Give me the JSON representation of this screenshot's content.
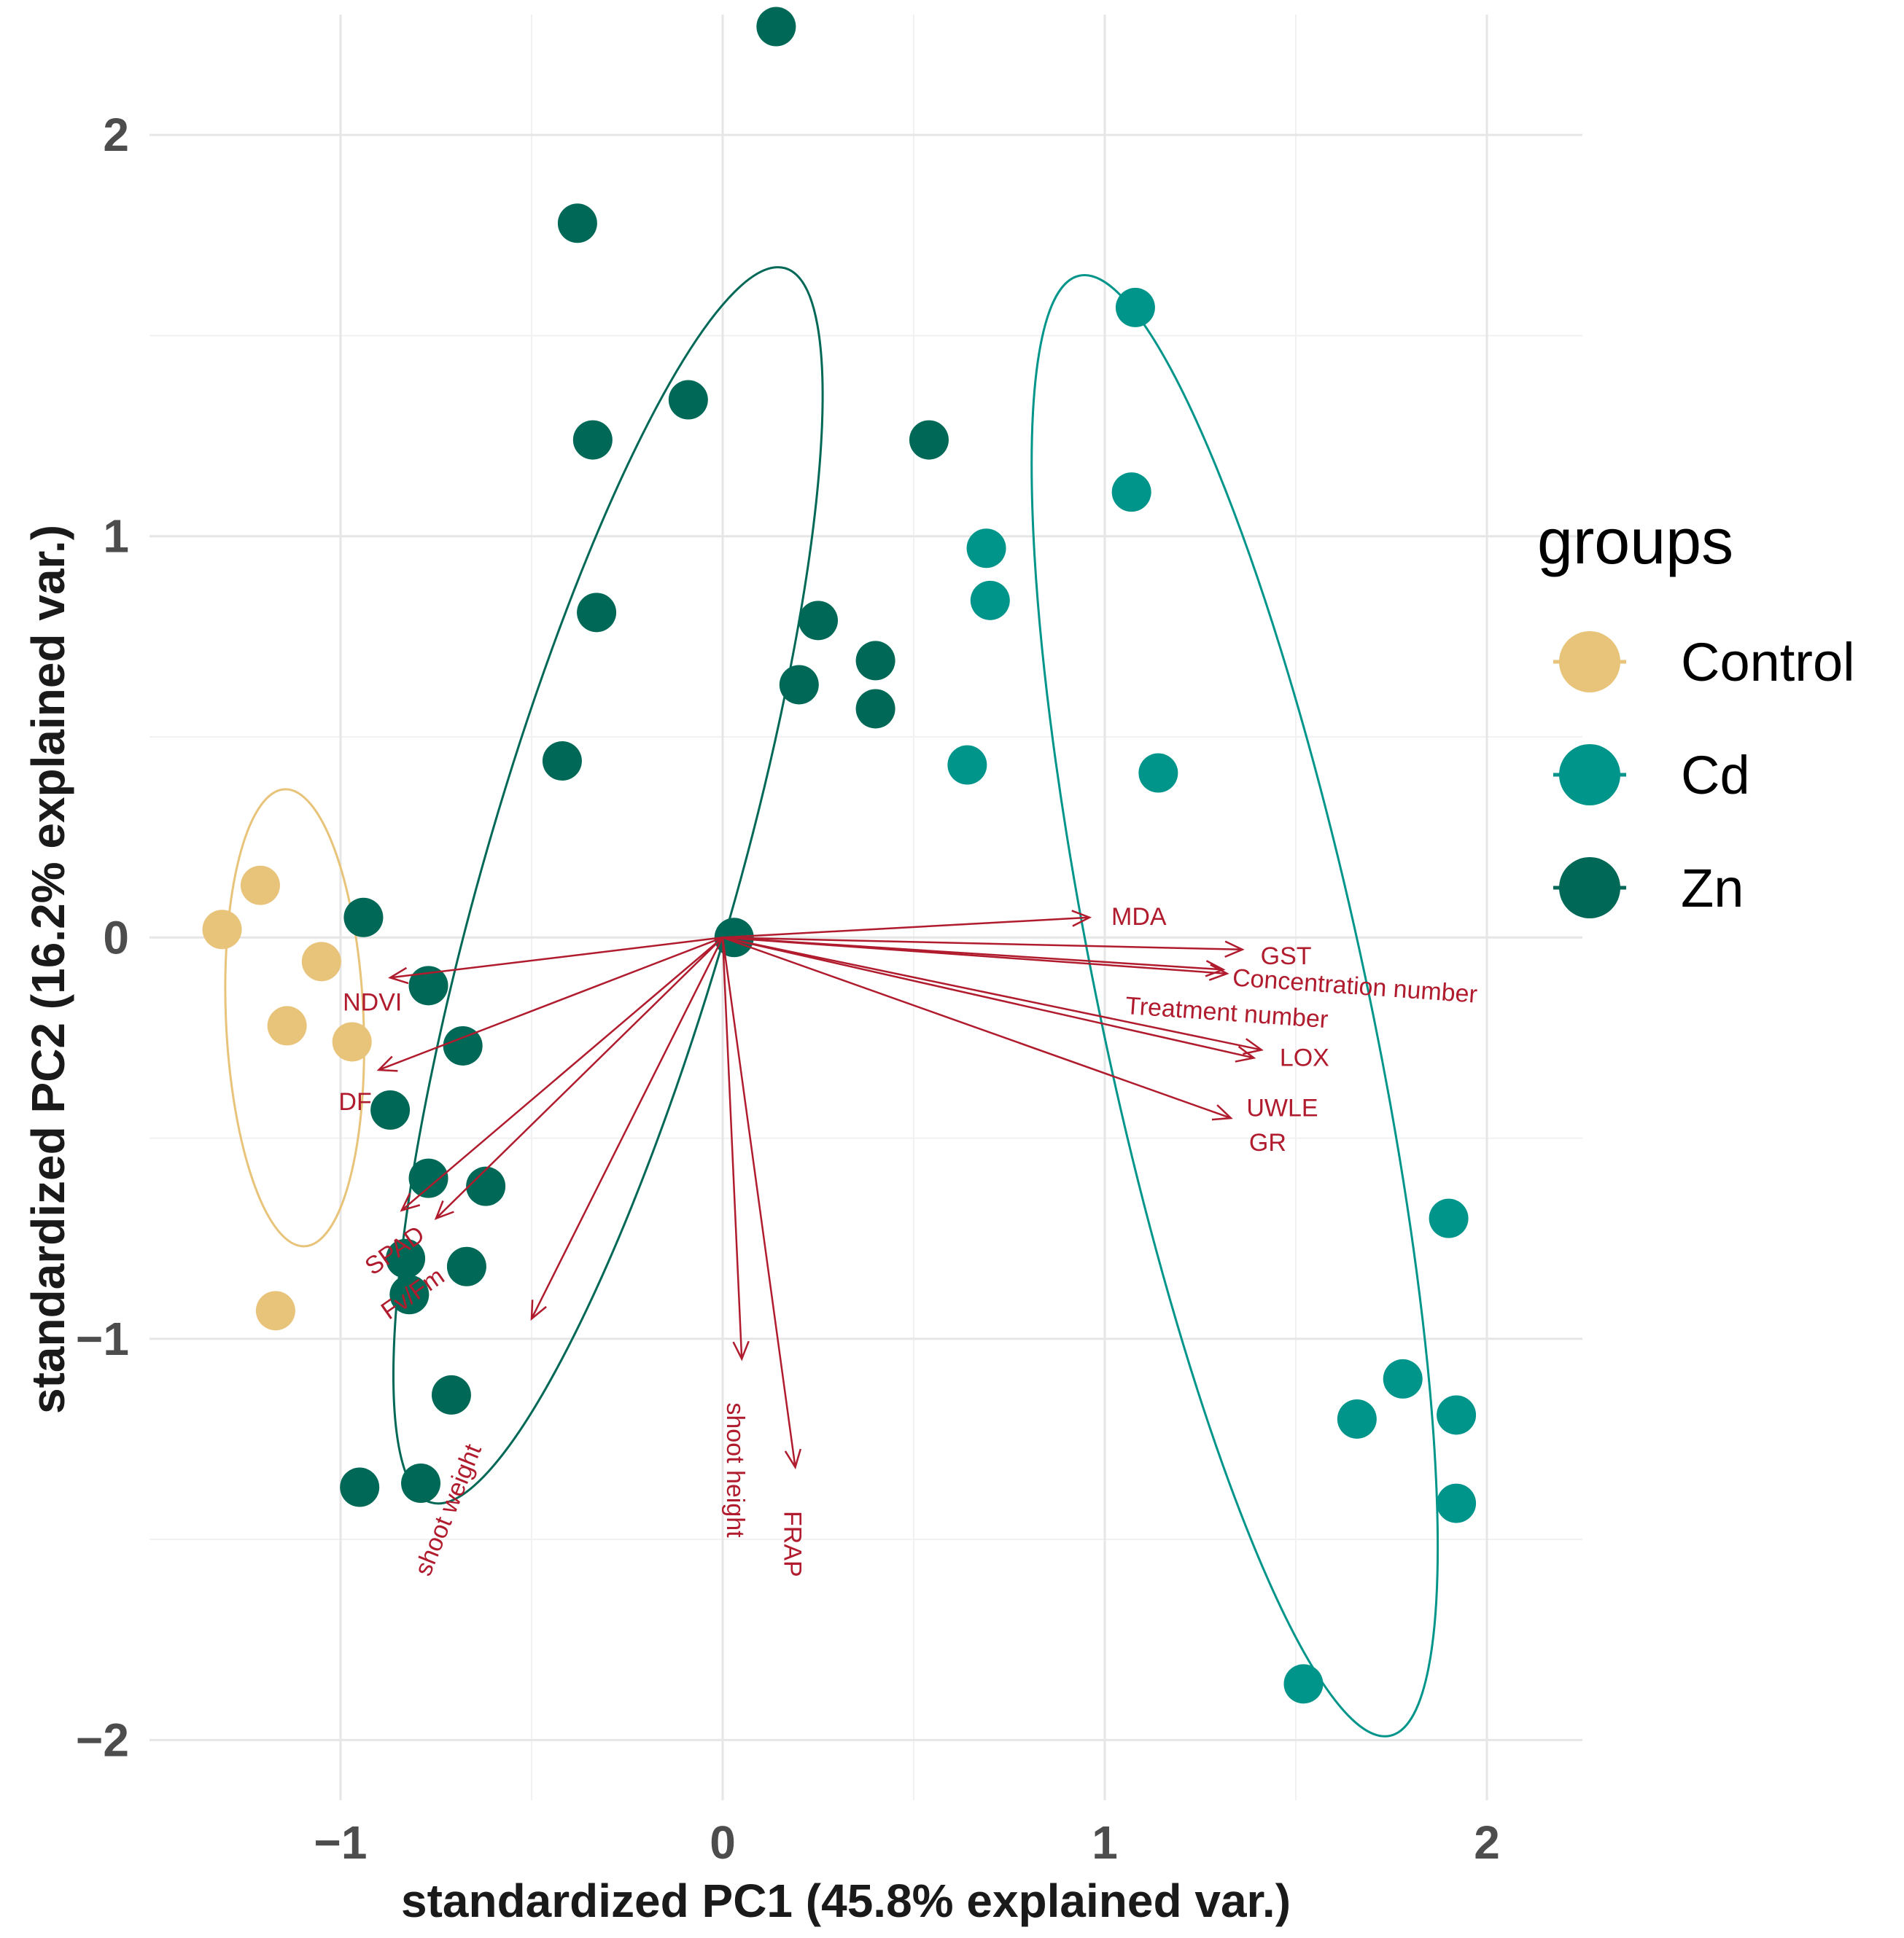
{
  "chart_data": {
    "type": "scatter",
    "subtype": "pca-biplot",
    "xlabel": "standardized PC1 (45.8% explained var.)",
    "ylabel": "standardized PC2 (16.2% explained var.)",
    "xlim": [
      -1.5,
      2.25
    ],
    "ylim": [
      -2.15,
      2.3
    ],
    "x_ticks": [
      -1,
      0,
      1,
      2
    ],
    "x_tick_labels": [
      "−1",
      "0",
      "1",
      "2"
    ],
    "y_ticks": [
      -2,
      -1,
      0,
      1,
      2
    ],
    "y_tick_labels": [
      "−2",
      "−1",
      "0",
      "1",
      "2"
    ],
    "grid": true,
    "legend": {
      "title": "groups",
      "position": "right",
      "entries": [
        {
          "name": "Control",
          "color": "#E8C37A"
        },
        {
          "name": "Cd",
          "color": "#00958A"
        },
        {
          "name": "Zn",
          "color": "#006857"
        }
      ]
    },
    "series": [
      {
        "name": "Control",
        "color": "#E8C37A",
        "points": [
          [
            -1.31,
            0.02
          ],
          [
            -1.21,
            0.13
          ],
          [
            -1.05,
            -0.06
          ],
          [
            -1.14,
            -0.22
          ],
          [
            -0.97,
            -0.26
          ],
          [
            -1.17,
            -0.93
          ]
        ],
        "ellipse": {
          "cx": -1.12,
          "cy": -0.2,
          "rx": 0.18,
          "ry": 0.57,
          "angle_deg": -2.5
        }
      },
      {
        "name": "Cd",
        "color": "#00958A",
        "points": [
          [
            1.08,
            1.57
          ],
          [
            1.07,
            1.11
          ],
          [
            0.69,
            0.97
          ],
          [
            0.7,
            0.84
          ],
          [
            0.64,
            0.43
          ],
          [
            1.14,
            0.41
          ],
          [
            1.9,
            -0.7
          ],
          [
            1.78,
            -1.1
          ],
          [
            1.66,
            -1.2
          ],
          [
            1.92,
            -1.19
          ],
          [
            1.92,
            -1.41
          ],
          [
            1.52,
            -1.86
          ]
        ],
        "ellipse": {
          "cx": 1.34,
          "cy": -0.17,
          "rx": 0.35,
          "ry": 1.86,
          "angle_deg": -12
        }
      },
      {
        "name": "Zn",
        "color": "#006857",
        "points": [
          [
            0.14,
            2.27
          ],
          [
            -0.38,
            1.78
          ],
          [
            -0.34,
            1.24
          ],
          [
            -0.09,
            1.34
          ],
          [
            0.54,
            1.24
          ],
          [
            -0.33,
            0.81
          ],
          [
            0.25,
            0.79
          ],
          [
            0.2,
            0.63
          ],
          [
            0.4,
            0.69
          ],
          [
            0.4,
            0.57
          ],
          [
            -0.42,
            0.44
          ],
          [
            0.03,
            0.0
          ],
          [
            -0.94,
            0.05
          ],
          [
            -0.77,
            -0.12
          ],
          [
            -0.68,
            -0.27
          ],
          [
            -0.87,
            -0.43
          ],
          [
            -0.77,
            -0.6
          ],
          [
            -0.62,
            -0.62
          ],
          [
            -0.83,
            -0.8
          ],
          [
            -0.67,
            -0.82
          ],
          [
            -0.82,
            -0.89
          ],
          [
            -0.71,
            -1.14
          ],
          [
            -0.95,
            -1.37
          ],
          [
            -0.79,
            -1.36
          ]
        ],
        "ellipse": {
          "cx": -0.3,
          "cy": 0.13,
          "rx": 0.33,
          "ry": 1.6,
          "angle_deg": 16
        }
      }
    ],
    "loadings": [
      {
        "name": "MDA",
        "x": 0.96,
        "y": 0.05
      },
      {
        "name": "GST",
        "x": 1.36,
        "y": -0.03
      },
      {
        "name": "Concentration number",
        "x": 1.31,
        "y": -0.08
      },
      {
        "name": "Treatment number",
        "x": 1.32,
        "y": -0.09
      },
      {
        "name": "LOX",
        "x": 1.41,
        "y": -0.28
      },
      {
        "name": "UWLE",
        "x": 1.39,
        "y": -0.3
      },
      {
        "name": "GR",
        "x": 1.33,
        "y": -0.45
      },
      {
        "name": "NDVI",
        "x": -0.87,
        "y": -0.1
      },
      {
        "name": "DF",
        "x": -0.9,
        "y": -0.33
      },
      {
        "name": "SPAD",
        "x": -0.84,
        "y": -0.68
      },
      {
        "name": "Fv/Fm",
        "x": -0.75,
        "y": -0.7
      },
      {
        "name": "shoot weight",
        "x": -0.5,
        "y": -0.95
      },
      {
        "name": "shoot height",
        "x": 0.05,
        "y": -1.05
      },
      {
        "name": "FRAP",
        "x": 0.19,
        "y": -1.32
      }
    ]
  }
}
